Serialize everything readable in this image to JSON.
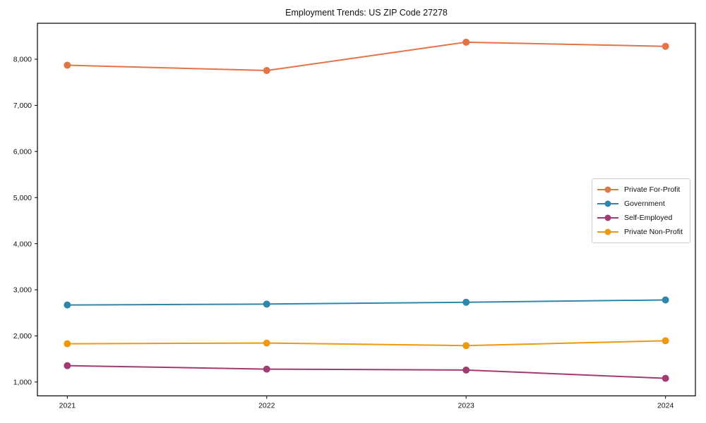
{
  "chart": {
    "title": "Employment Trends: US ZIP Code 27278"
  },
  "chart_data": {
    "type": "line",
    "title": "Employment Trends: US ZIP Code 27278",
    "xlabel": "",
    "ylabel": "",
    "x": [
      2021,
      2022,
      2023,
      2024
    ],
    "x_tick_labels": [
      "2021",
      "2022",
      "2023",
      "2024"
    ],
    "series": [
      {
        "name": "Private For-Profit",
        "color": "#e47345",
        "values": [
          7870,
          7755,
          8370,
          8280
        ]
      },
      {
        "name": "Government",
        "color": "#2e86ab",
        "values": [
          2670,
          2690,
          2730,
          2780
        ]
      },
      {
        "name": "Self-Employed",
        "color": "#a23b72",
        "values": [
          1355,
          1280,
          1260,
          1080
        ]
      },
      {
        "name": "Private Non-Profit",
        "color": "#f0990e",
        "values": [
          1830,
          1845,
          1790,
          1895
        ]
      }
    ],
    "xlim": [
      2020.85,
      2024.15
    ],
    "ylim": [
      700,
      8780
    ],
    "yticks": [
      1000,
      2000,
      3000,
      4000,
      5000,
      6000,
      7000,
      8000
    ],
    "ytick_format": "comma",
    "grid": false,
    "legend_position": "right-middle",
    "axis_color": "#000000",
    "background_color": "#ffffff"
  }
}
